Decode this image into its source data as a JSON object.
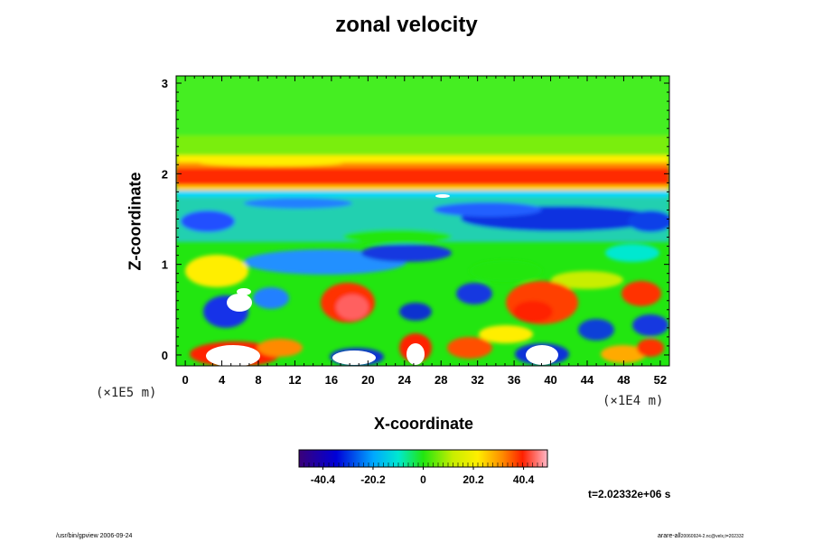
{
  "chart_data": {
    "type": "heatmap",
    "title": "zonal velocity",
    "xlabel": "X-coordinate",
    "ylabel": "Z-coordinate",
    "x_scale_note": "(×1E4 m)",
    "z_scale_note": "(×1E5 m)",
    "xlim": [
      -1,
      53
    ],
    "ylim": [
      -0.12,
      3.08
    ],
    "x_ticks": [
      0,
      4,
      8,
      12,
      16,
      20,
      24,
      28,
      32,
      36,
      40,
      44,
      48,
      52
    ],
    "y_ticks": [
      0,
      1,
      2,
      3
    ],
    "colorbar": {
      "range": [
        -50,
        50
      ],
      "tick_values": [
        -40.4,
        -20.2,
        0,
        20.2,
        40.4
      ],
      "tick_labels": [
        "-40.4",
        "-20.2",
        "0",
        "20.2",
        "40.4"
      ]
    },
    "missing_color": "#ffffff",
    "time_label": "t=2.02332e+06 s"
  },
  "footer": {
    "left": "/usr/bin/gpview 2006-09-24",
    "right": "arare-all",
    "right_small": "20060924-2.nc@velx,t=202332"
  }
}
